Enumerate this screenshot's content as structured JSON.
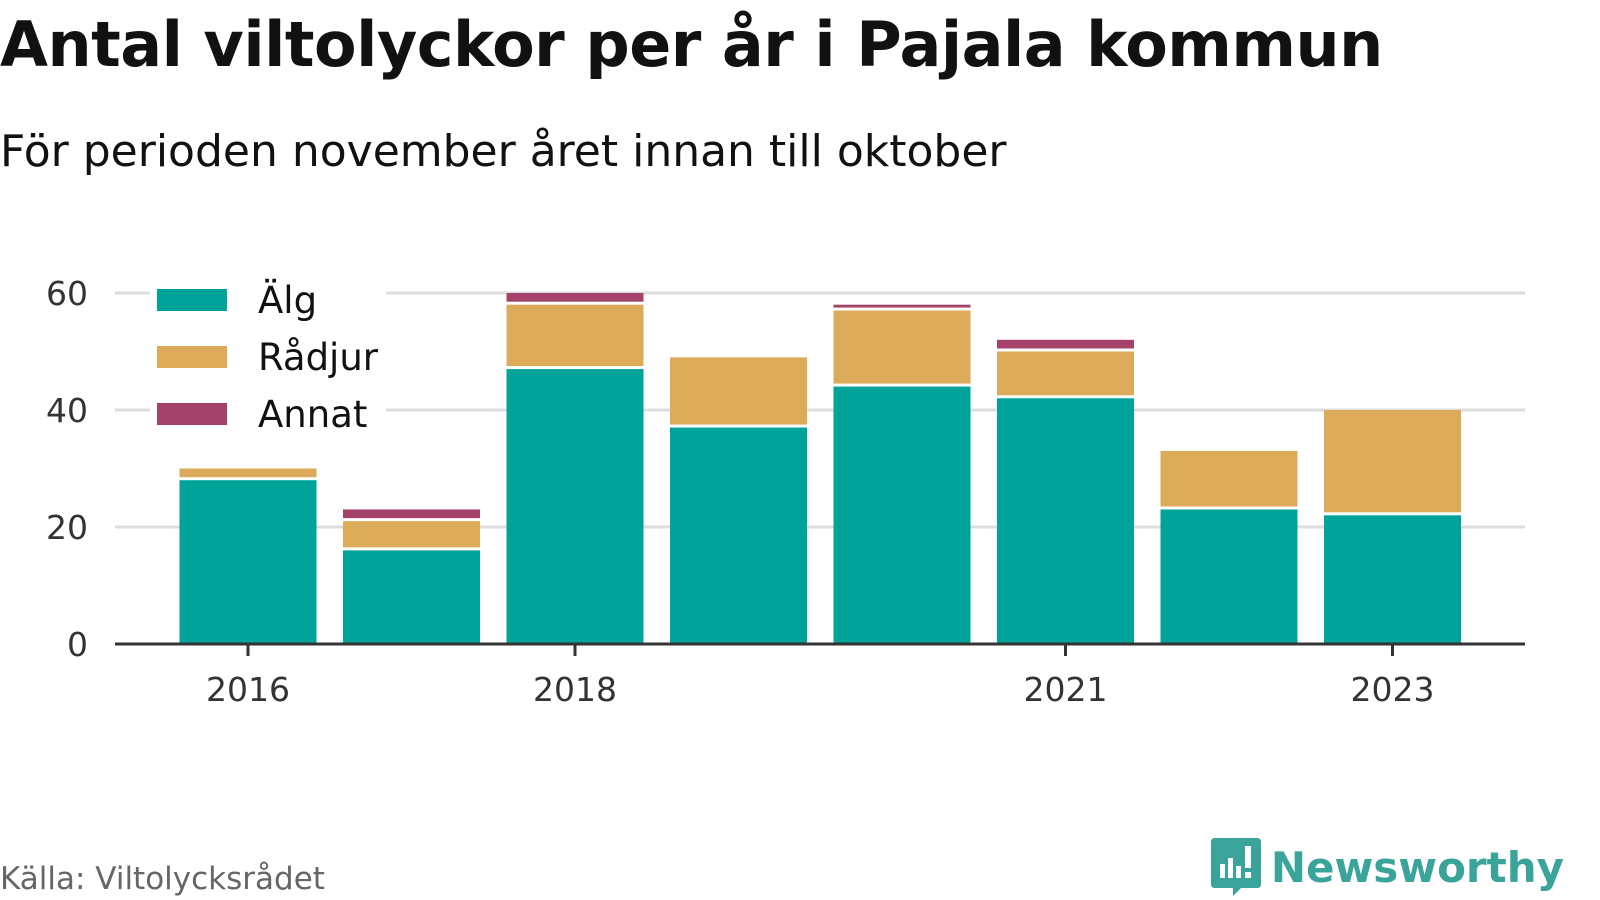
{
  "title": "Antal viltolyckor per år i Pajala kommun",
  "subtitle": "För perioden november året innan till oktober",
  "source": "Källa: Viltolycksrådet",
  "brand": {
    "name": "Newsworthy",
    "icon": "newsworthy-logo-icon",
    "color": "#3aa39a"
  },
  "chart_data": {
    "type": "bar",
    "stacked": true,
    "categories": [
      "2016",
      "2017",
      "2018",
      "2019",
      "2020",
      "2021",
      "2022",
      "2023"
    ],
    "x_tick_labels": [
      "2016",
      "",
      "2018",
      "",
      "",
      "2021",
      "",
      "2023"
    ],
    "series": [
      {
        "name": "Älg",
        "color": "#00a39a",
        "values": [
          28,
          16,
          47,
          37,
          44,
          42,
          23,
          22
        ]
      },
      {
        "name": "Rådjur",
        "color": "#dcab5a",
        "values": [
          2,
          5,
          11,
          12,
          13,
          8,
          10,
          18
        ]
      },
      {
        "name": "Annat",
        "color": "#a4426a",
        "values": [
          0,
          2,
          2,
          0,
          1,
          2,
          0,
          0
        ]
      }
    ],
    "y_ticks": [
      0,
      20,
      40,
      60
    ],
    "ylim": [
      0,
      60
    ],
    "grid": true,
    "legend": "top-left"
  }
}
